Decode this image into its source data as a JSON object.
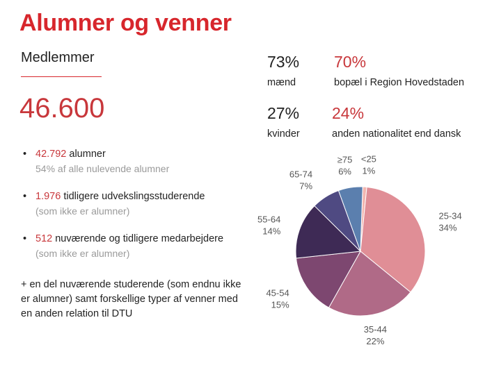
{
  "title": "Alumner og venner",
  "subtitle": "Medlemmer",
  "total": "46.600",
  "bullets": [
    {
      "number": "42.792",
      "text": " alumner",
      "sub": "54% af alle nulevende alumner"
    },
    {
      "number": "1.976",
      "text": " tidligere udvekslingsstuderende",
      "sub": "(som ikke er alumner)"
    },
    {
      "number": "512",
      "text": " nuværende og tidligere medarbejdere",
      "sub": "(som ikke er alumner)"
    }
  ],
  "note": "+ en del nuværende studerende (som endnu ikke er alumner) samt forskellige typer af venner med en anden relation til DTU",
  "stats": [
    {
      "pct": "73%",
      "label": "mænd"
    },
    {
      "pct": "70%",
      "label": "bopæl i Region Hovedstaden"
    },
    {
      "pct": "27%",
      "label": "kvinder"
    },
    {
      "pct": "24%",
      "label": "anden nationalitet end dansk"
    }
  ],
  "colors": {
    "accent": "#d7262c",
    "number_red": "#c8373b"
  },
  "chart_data": {
    "type": "pie",
    "categories": [
      "<25",
      "25-34",
      "35-44",
      "45-54",
      "55-64",
      "65-74",
      "≥75"
    ],
    "values": [
      1,
      34,
      22,
      15,
      14,
      7,
      6
    ],
    "labels": [
      "1%",
      "34%",
      "22%",
      "15%",
      "14%",
      "7%",
      "6%"
    ],
    "colors": [
      "#f2b6b0",
      "#e08e96",
      "#b06a87",
      "#7d4770",
      "#3e2a55",
      "#4f4a82",
      "#5b7fae"
    ],
    "start_angle_deg": 2
  }
}
